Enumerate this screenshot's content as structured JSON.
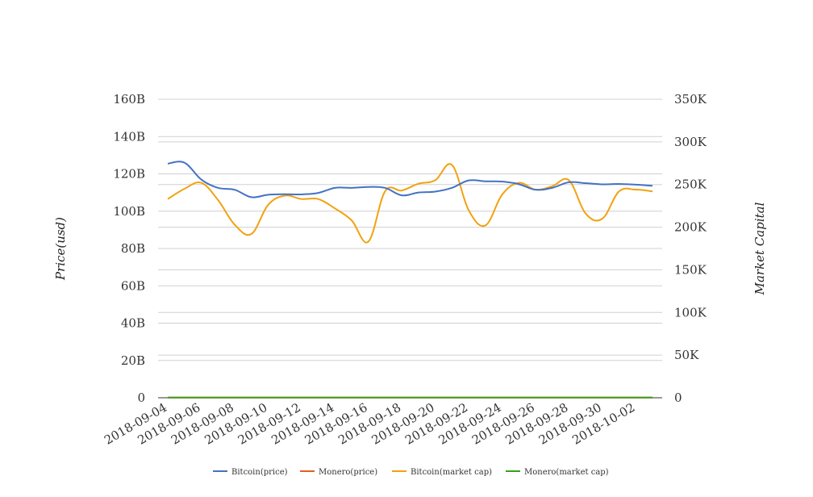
{
  "chart_data": {
    "type": "line",
    "title": "",
    "left_axis": {
      "label": "Price(usd)",
      "ylim": [
        0,
        160000000000
      ],
      "ticks": [
        0,
        20000000000,
        40000000000,
        60000000000,
        80000000000,
        100000000000,
        120000000000,
        140000000000,
        160000000000
      ],
      "tick_labels": [
        "0",
        "20B",
        "40B",
        "60B",
        "80B",
        "100B",
        "120B",
        "140B",
        "160B"
      ]
    },
    "right_axis": {
      "label": "Market Capital",
      "ylim": [
        0,
        350000
      ],
      "ticks": [
        0,
        50000,
        100000,
        150000,
        200000,
        250000,
        300000,
        350000
      ],
      "tick_labels": [
        "0",
        "50K",
        "100K",
        "150K",
        "200K",
        "250K",
        "300K",
        "350K"
      ]
    },
    "x_tick_labels": [
      "2018-09-04",
      "2018-09-06",
      "2018-09-08",
      "2018-09-10",
      "2018-09-12",
      "2018-09-14",
      "2018-09-16",
      "2018-09-18",
      "2018-09-20",
      "2018-09-22",
      "2018-09-24",
      "2018-09-26",
      "2018-09-28",
      "2018-09-30",
      "2018-10-02"
    ],
    "x": [
      "2018-09-04",
      "2018-09-05",
      "2018-09-06",
      "2018-09-07",
      "2018-09-08",
      "2018-09-09",
      "2018-09-10",
      "2018-09-11",
      "2018-09-12",
      "2018-09-13",
      "2018-09-14",
      "2018-09-15",
      "2018-09-16",
      "2018-09-17",
      "2018-09-18",
      "2018-09-19",
      "2018-09-20",
      "2018-09-21",
      "2018-09-22",
      "2018-09-23",
      "2018-09-24",
      "2018-09-25",
      "2018-09-26",
      "2018-09-27",
      "2018-09-28",
      "2018-09-29",
      "2018-09-30",
      "2018-10-01",
      "2018-10-02",
      "2018-10-03"
    ],
    "grid": true,
    "legend_position": "bottom",
    "series": [
      {
        "name": "Bitcoin(price)",
        "axis": "left",
        "color": "#4472c4",
        "values": [
          125500000000,
          126000000000,
          117000000000,
          112500000000,
          111500000000,
          107500000000,
          108800000000,
          109100000000,
          109000000000,
          109800000000,
          112500000000,
          112500000000,
          113000000000,
          112500000000,
          108500000000,
          110000000000,
          110500000000,
          112500000000,
          116500000000,
          116000000000,
          115900000000,
          114500000000,
          111500000000,
          112500000000,
          115500000000,
          115000000000,
          114400000000,
          114600000000,
          114200000000,
          113600000000
        ]
      },
      {
        "name": "Monero(price)",
        "axis": "left",
        "color": "#e15e26",
        "values": [
          100000000,
          100000000,
          100000000,
          100000000,
          100000000,
          100000000,
          100000000,
          100000000,
          100000000,
          100000000,
          100000000,
          100000000,
          100000000,
          100000000,
          100000000,
          100000000,
          100000000,
          100000000,
          100000000,
          100000000,
          100000000,
          100000000,
          100000000,
          100000000,
          100000000,
          100000000,
          100000000,
          100000000,
          100000000,
          100000000
        ]
      },
      {
        "name": "Bitcoin(market cap)",
        "axis": "right",
        "color": "#f1a20f",
        "values": [
          233000,
          245000,
          252000,
          232000,
          203000,
          192000,
          226000,
          237000,
          233000,
          233000,
          222000,
          208000,
          183000,
          242000,
          243000,
          251000,
          255000,
          273000,
          220000,
          202000,
          238000,
          252000,
          244000,
          248000,
          255000,
          216000,
          210000,
          242000,
          244000,
          242000
        ]
      },
      {
        "name": "Monero(market cap)",
        "axis": "right",
        "color": "#3a9d23",
        "values": [
          200,
          200,
          200,
          200,
          200,
          200,
          200,
          200,
          200,
          200,
          200,
          200,
          200,
          200,
          200,
          200,
          200,
          200,
          200,
          200,
          200,
          200,
          200,
          200,
          200,
          200,
          200,
          200,
          200,
          200
        ]
      }
    ]
  }
}
